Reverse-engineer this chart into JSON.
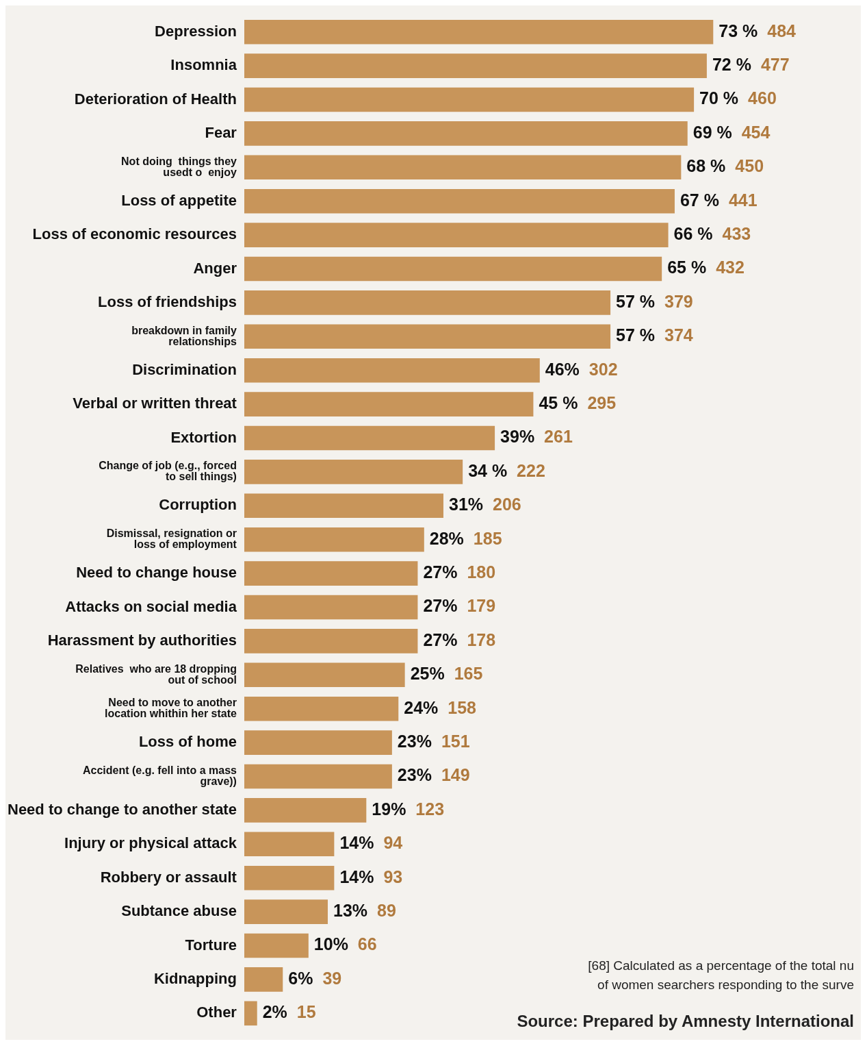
{
  "chart_data": {
    "type": "bar",
    "orientation": "horizontal",
    "legend": false,
    "grid": false,
    "tick_labels": "y",
    "categories": [
      "Depression",
      "Insomnia",
      "Deterioration of Health",
      "Fear",
      "Not doing  things they\nusedt o  enjoy",
      "Loss of appetite",
      "Loss of economic resources",
      "Anger",
      "Loss of friendships",
      "breakdown in family\nrelationships",
      "Discrimination",
      "Verbal or written threat",
      "Extortion",
      "Change of job (e.g., forced\nto sell things)",
      "Corruption",
      "Dismissal, resignation or\nloss of employment",
      "Need to change house",
      "Attacks on social media",
      "Harassment by authorities",
      "Relatives  who are 18 dropping\nout of school",
      "Need to move to another\nlocation whithin her state",
      "Loss of home",
      "Accident (e.g. fell into a mass\ngrave))",
      "Need to change to another state",
      "Injury or physical attack",
      "Robbery or assault",
      "Subtance abuse",
      "Torture",
      "Kidnapping",
      "Other"
    ],
    "series": [
      {
        "color": "#c8955a",
        "values": [
          73,
          72,
          70,
          69,
          68,
          67,
          66,
          65,
          57,
          57,
          46,
          45,
          39,
          34,
          31,
          28,
          27,
          27,
          27,
          25,
          24,
          23,
          23,
          19,
          14,
          14,
          13,
          10,
          6,
          2
        ],
        "value_labels": [
          "73 % 484",
          "72 % 477",
          "70 % 460",
          "69 % 454",
          "68 % 450",
          "67 % 441",
          "66 % 433",
          "65 % 432",
          "57 % 379",
          "57 % 374",
          "46% 302",
          "45 % 295",
          "39% 261",
          "34 % 222",
          "31% 206",
          "28% 185",
          "27% 180",
          "27% 179",
          "27% 178",
          "25% 165",
          "24% 158",
          "23% 151",
          "23% 149",
          "19% 123",
          "14% 94",
          "14% 93",
          "13% 89",
          "10% 66",
          "6% 39",
          "2% 15"
        ]
      }
    ],
    "annotations": [
      "[68] Calculated as a percentage of the total nu",
      "of women searchers responding to the surve",
      "Source: Prepared by Amnesty International"
    ]
  }
}
